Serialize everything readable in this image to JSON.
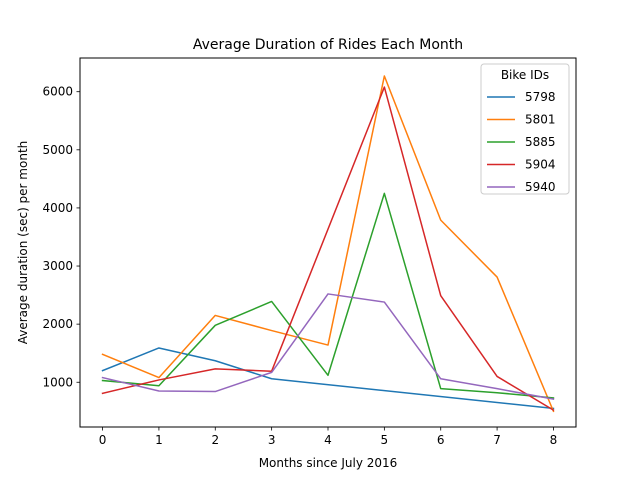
{
  "chart_data": {
    "type": "line",
    "title": "Average Duration of Rides Each Month",
    "xlabel": "Months since July 2016",
    "ylabel": "Average duration (sec) per month",
    "x": [
      0,
      1,
      2,
      3,
      4,
      5,
      6,
      7,
      8
    ],
    "xticks": [
      "0",
      "1",
      "2",
      "3",
      "4",
      "5",
      "6",
      "7",
      "8"
    ],
    "yticks": [
      1000,
      2000,
      3000,
      4000,
      5000,
      6000
    ],
    "xlim": [
      -0.4,
      8.4
    ],
    "ylim": [
      230,
      6580
    ],
    "grid": false,
    "legend": {
      "title": "Bike IDs",
      "placement": "top-right"
    },
    "series": [
      {
        "name": "5798",
        "color": "#1f77b4",
        "x": [
          0,
          1,
          2,
          3,
          8
        ],
        "values": [
          1200,
          1590,
          1370,
          1060,
          550
        ]
      },
      {
        "name": "5801",
        "color": "#ff7f0e",
        "x": [
          0,
          1,
          2,
          3,
          4,
          5,
          6,
          7,
          8
        ],
        "values": [
          1480,
          1080,
          2150,
          1890,
          1640,
          6270,
          3790,
          2810,
          500
        ]
      },
      {
        "name": "5885",
        "color": "#2ca02c",
        "x": [
          0,
          1,
          2,
          3,
          4,
          5,
          6,
          7,
          8
        ],
        "values": [
          1030,
          940,
          1980,
          2390,
          1120,
          4250,
          890,
          820,
          730
        ]
      },
      {
        "name": "5904",
        "color": "#d62728",
        "x": [
          0,
          1,
          2,
          3,
          5,
          6,
          7,
          8
        ],
        "values": [
          810,
          1040,
          1230,
          1190,
          6080,
          2490,
          1100,
          520
        ]
      },
      {
        "name": "5940",
        "color": "#9467bd",
        "x": [
          0,
          1,
          2,
          3,
          4,
          5,
          6,
          7,
          8
        ],
        "values": [
          1080,
          850,
          840,
          1170,
          2520,
          2380,
          1060,
          890,
          710
        ]
      }
    ]
  }
}
